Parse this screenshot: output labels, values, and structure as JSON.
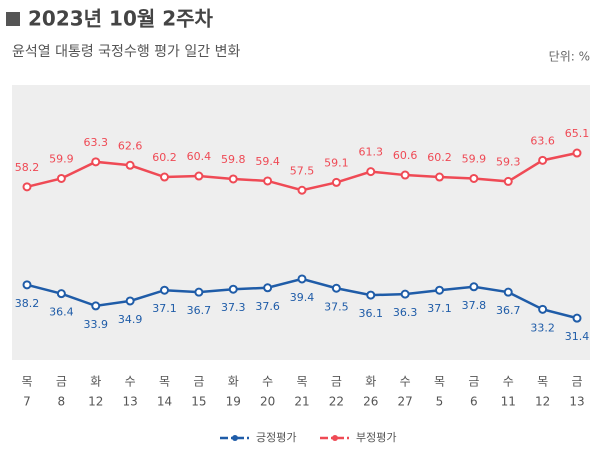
{
  "chart_data": {
    "type": "line",
    "title": "2023년 10월 2주차",
    "subtitle": "윤석열 대통령 국정수행 평가 일간 변화",
    "unit_note": "단위: %",
    "category_weekdays": [
      "목",
      "금",
      "화",
      "수",
      "목",
      "금",
      "화",
      "수",
      "목",
      "금",
      "화",
      "수",
      "목",
      "금",
      "수",
      "목",
      "금"
    ],
    "categories": [
      "7",
      "8",
      "12",
      "13",
      "14",
      "15",
      "19",
      "20",
      "21",
      "22",
      "26",
      "27",
      "5",
      "6",
      "11",
      "12",
      "13"
    ],
    "series": [
      {
        "name": "긍정평가",
        "color": "#1f5ca8",
        "values": [
          38.2,
          36.4,
          33.9,
          34.9,
          37.1,
          36.7,
          37.3,
          37.6,
          39.4,
          37.5,
          36.1,
          36.3,
          37.1,
          37.8,
          36.7,
          33.2,
          31.4
        ]
      },
      {
        "name": "부정평가",
        "color": "#ef4a55",
        "values": [
          58.2,
          59.9,
          63.3,
          62.6,
          60.2,
          60.4,
          59.8,
          59.4,
          57.5,
          59.1,
          61.3,
          60.6,
          60.2,
          59.9,
          59.3,
          63.6,
          65.1
        ]
      }
    ],
    "legend": "bottom"
  }
}
